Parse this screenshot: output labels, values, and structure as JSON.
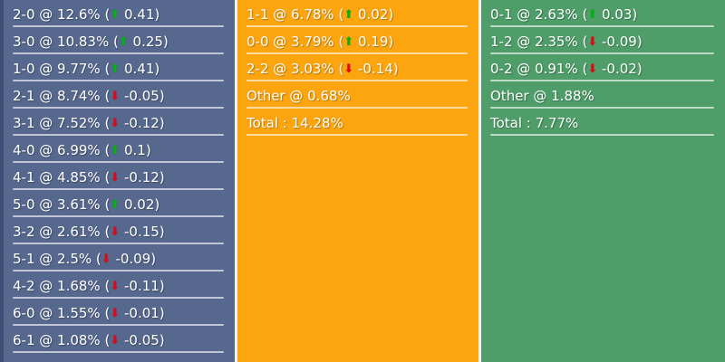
{
  "colors": {
    "home_bg": "#56688e",
    "home_edge": "#3e5078",
    "draw_bg": "#fda50f",
    "away_bg": "#4f9e6a",
    "up": "#00b60b",
    "down": "#e30613",
    "divider": "rgba(255,255,255,0.62)",
    "text": "#ffffff",
    "gap": "#f4f4f4"
  },
  "icons": {
    "up": "⬆",
    "down": "⬇"
  },
  "formats": {
    "score_row": "{score} @ {pct} ({arrow} {change})",
    "other_row": "{label} @ {pct}",
    "total_row": "{label} : {pct}"
  },
  "columns": [
    {
      "id": "home",
      "rows": [
        {
          "score": "2-0",
          "pct": "12.6%",
          "dir": "up",
          "change": "0.41"
        },
        {
          "score": "3-0",
          "pct": "10.83%",
          "dir": "up",
          "change": "0.25"
        },
        {
          "score": "1-0",
          "pct": "9.77%",
          "dir": "up",
          "change": "0.41"
        },
        {
          "score": "2-1",
          "pct": "8.74%",
          "dir": "down",
          "change": "-0.05"
        },
        {
          "score": "3-1",
          "pct": "7.52%",
          "dir": "down",
          "change": "-0.12"
        },
        {
          "score": "4-0",
          "pct": "6.99%",
          "dir": "up",
          "change": "0.1"
        },
        {
          "score": "4-1",
          "pct": "4.85%",
          "dir": "down",
          "change": "-0.12"
        },
        {
          "score": "5-0",
          "pct": "3.61%",
          "dir": "up",
          "change": "0.02"
        },
        {
          "score": "3-2",
          "pct": "2.61%",
          "dir": "down",
          "change": "-0.15"
        },
        {
          "score": "5-1",
          "pct": "2.5%",
          "dir": "down",
          "change": "-0.09"
        },
        {
          "score": "4-2",
          "pct": "1.68%",
          "dir": "down",
          "change": "-0.11"
        },
        {
          "score": "6-0",
          "pct": "1.55%",
          "dir": "down",
          "change": "-0.01"
        },
        {
          "score": "6-1",
          "pct": "1.08%",
          "dir": "down",
          "change": "-0.05"
        }
      ]
    },
    {
      "id": "draw",
      "rows": [
        {
          "score": "1-1",
          "pct": "6.78%",
          "dir": "up",
          "change": "0.02"
        },
        {
          "score": "0-0",
          "pct": "3.79%",
          "dir": "up",
          "change": "0.19"
        },
        {
          "score": "2-2",
          "pct": "3.03%",
          "dir": "down",
          "change": "-0.14"
        },
        {
          "type": "other",
          "label": "Other",
          "pct": "0.68%"
        },
        {
          "type": "total",
          "label": "Total",
          "pct": "14.28%"
        }
      ]
    },
    {
      "id": "away",
      "rows": [
        {
          "score": "0-1",
          "pct": "2.63%",
          "dir": "up",
          "change": "0.03"
        },
        {
          "score": "1-2",
          "pct": "2.35%",
          "dir": "down",
          "change": "-0.09"
        },
        {
          "score": "0-2",
          "pct": "0.91%",
          "dir": "down",
          "change": "-0.02"
        },
        {
          "type": "other",
          "label": "Other",
          "pct": "1.88%"
        },
        {
          "type": "total",
          "label": "Total",
          "pct": "7.77%"
        }
      ]
    }
  ]
}
